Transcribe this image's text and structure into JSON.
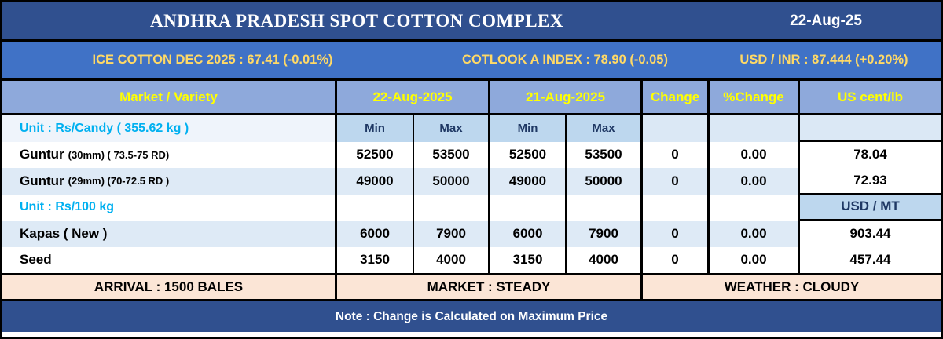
{
  "window": {
    "title": "ANDHRA PRADESH SPOT COTTON COMPLEX",
    "date": "22-Aug-25"
  },
  "ticker": {
    "ice_cotton": "ICE COTTON DEC 2025 : 67.41 (-0.01%)",
    "cotlook": "COTLOOK A INDEX : 78.90 (-0.05)",
    "usd_inr": "USD / INR : 87.444 (+0.20%)"
  },
  "table": {
    "header": {
      "market_variety": "Market / Variety",
      "date_today": "22-Aug-2025",
      "date_prev": "21-Aug-2025",
      "change": "Change",
      "pct_change": "%Change",
      "us_cent": "US cent/lb"
    },
    "subheader": {
      "unit_candy": "Unit : Rs/Candy ( 355.62 kg )",
      "min": "Min",
      "max": "Max"
    },
    "unit_100kg": "Unit : Rs/100 kg",
    "usd_mt": "USD / MT",
    "rows": [
      {
        "name": "Guntur",
        "spec": "(30mm) ( 73.5-75 RD)",
        "d22_min": "52500",
        "d22_max": "53500",
        "d21_min": "52500",
        "d21_max": "53500",
        "change": "0",
        "pct_change": "0.00",
        "us_cent": "78.04"
      },
      {
        "name": "Guntur",
        "spec": "(29mm) (70-72.5 RD )",
        "d22_min": "49000",
        "d22_max": "50000",
        "d21_min": "49000",
        "d21_max": "50000",
        "change": "0",
        "pct_change": "0.00",
        "us_cent": "72.93"
      },
      {
        "name": "Kapas ( New )",
        "spec": "",
        "d22_min": "6000",
        "d22_max": "7900",
        "d21_min": "6000",
        "d21_max": "7900",
        "change": "0",
        "pct_change": "0.00",
        "us_cent": "903.44"
      },
      {
        "name": "Seed",
        "spec": "",
        "d22_min": "3150",
        "d22_max": "4000",
        "d21_min": "3150",
        "d21_max": "4000",
        "change": "0",
        "pct_change": "0.00",
        "us_cent": "457.44"
      }
    ]
  },
  "footer": {
    "arrival": "ARRIVAL : 1500 BALES",
    "market": "MARKET : STEADY",
    "weather": "WEATHER : CLOUDY"
  },
  "note": "Note : Change is Calculated on Maximum Price",
  "colors": {
    "title_bar": "#30508F",
    "ticker_bar": "#4072C6",
    "header": "#8EA9DB",
    "minmax": "#BDD7EE",
    "stripe": "#DEEAF6",
    "subtle": "#DBE8F5",
    "unit_row": "#EFF4FB",
    "peach": "#FBE5D6",
    "yellow": "#FFFF00",
    "gold": "#FFD966",
    "cyan": "#00B0F0",
    "navy": "#1F3864"
  }
}
